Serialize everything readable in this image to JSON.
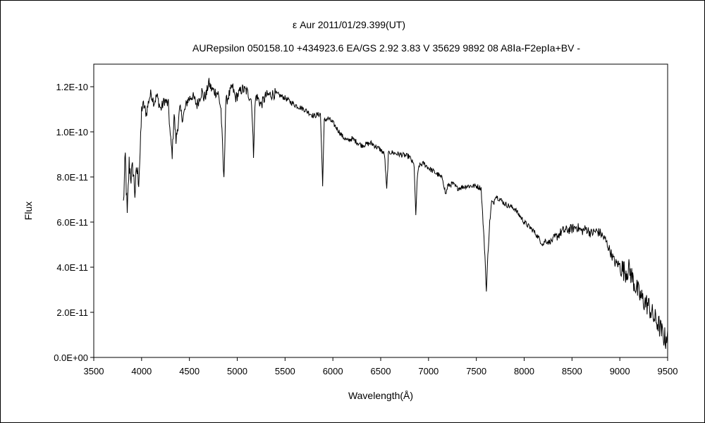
{
  "chart_data": {
    "type": "line",
    "title": "ε Aur   2011/01/29.399(UT)",
    "subtitle": "AURepsilon 050158.10 +434923.6 EA/GS 2.92 3.83 V 35629 9892 08 A8Ⅰa-F2epⅠa+BV -",
    "xlabel": "Wavelength(Å)",
    "ylabel": "Flux",
    "xlim": [
      3500,
      9500
    ],
    "ylim": [
      0,
      1.2e-10
    ],
    "ymax_plot": 1.3e-10,
    "x_ticks": [
      "3500",
      "4000",
      "4500",
      "5000",
      "5500",
      "6000",
      "6500",
      "7000",
      "7500",
      "8000",
      "8500",
      "9000",
      "9500"
    ],
    "x_tick_values": [
      3500,
      4000,
      4500,
      5000,
      5500,
      6000,
      6500,
      7000,
      7500,
      8000,
      8500,
      9000,
      9500
    ],
    "y_ticks": [
      "0.0E+00",
      "2.0E-11",
      "4.0E-11",
      "6.0E-11",
      "8.0E-11",
      "1.0E-10",
      "1.2E-10"
    ],
    "y_tick_values": [
      0,
      2e-11,
      4e-11,
      6e-11,
      8e-11,
      1e-10,
      1.2e-10
    ],
    "grid": false,
    "legend": "none",
    "line_color": "#000000",
    "series": [
      {
        "values_unit": "Flux",
        "x": [
          3810,
          3830,
          3850,
          3870,
          3890,
          3910,
          3930,
          3950,
          3970,
          3990,
          4000,
          4020,
          4050,
          4080,
          4100,
          4130,
          4160,
          4200,
          4240,
          4280,
          4300,
          4320,
          4340,
          4360,
          4400,
          4430,
          4480,
          4530,
          4580,
          4630,
          4650,
          4680,
          4700,
          4730,
          4760,
          4800,
          4830,
          4861,
          4880,
          4900,
          4950,
          4980,
          5000,
          5050,
          5100,
          5150,
          5170,
          5180,
          5190,
          5200,
          5250,
          5300,
          5400,
          5500,
          5600,
          5700,
          5800,
          5870,
          5893,
          5910,
          5950,
          6000,
          6100,
          6150,
          6200,
          6300,
          6400,
          6500,
          6540,
          6563,
          6580,
          6600,
          6700,
          6800,
          6850,
          6867,
          6880,
          6900,
          6950,
          7000,
          7100,
          7150,
          7180,
          7200,
          7250,
          7300,
          7400,
          7500,
          7550,
          7590,
          7605,
          7620,
          7640,
          7660,
          7680,
          7700,
          7720,
          7750,
          7800,
          7900,
          8000,
          8100,
          8150,
          8180,
          8200,
          8220,
          8250,
          8300,
          8400,
          8500,
          8550,
          8600,
          8650,
          8700,
          8750,
          8800,
          8850,
          8900,
          8950,
          9000,
          9050,
          9100,
          9150,
          9200,
          9250,
          9300,
          9350,
          9400,
          9450,
          9480,
          9500
        ],
        "values": [
          6.8e-11,
          8.9e-11,
          6.2e-11,
          8.6e-11,
          8e-11,
          8.4e-11,
          7.3e-11,
          8.3e-11,
          7.9e-11,
          9.5e-11,
          1.1e-10,
          1.12e-10,
          1.08e-10,
          1.15e-10,
          1.17e-10,
          1.13e-10,
          1.16e-10,
          1.1e-10,
          1.14e-10,
          1.12e-10,
          9.8e-11,
          9e-11,
          1.08e-10,
          9.6e-11,
          1.1e-10,
          1.06e-10,
          1.14e-10,
          1.16e-10,
          1.12e-10,
          1.18e-10,
          1.15e-10,
          1.17e-10,
          1.22e-10,
          1.19e-10,
          1.18e-10,
          1.17e-10,
          1.1e-10,
          7.8e-11,
          1.13e-10,
          1.15e-10,
          1.2e-10,
          1.15e-10,
          1.16e-10,
          1.19e-10,
          1.18e-10,
          1.14e-10,
          9e-11,
          1.05e-10,
          1.14e-10,
          1.16e-10,
          1.12e-10,
          1.16e-10,
          1.17e-10,
          1.15e-10,
          1.12e-10,
          1.1e-10,
          1.07e-10,
          1.08e-10,
          7.7e-11,
          1.05e-10,
          1.06e-10,
          1.04e-10,
          9.8e-11,
          9.6e-11,
          9.7e-11,
          9.4e-11,
          9.5e-11,
          9.2e-11,
          9e-11,
          7.4e-11,
          9e-11,
          9.1e-11,
          9e-11,
          8.9e-11,
          8.5e-11,
          6.2e-11,
          7.8e-11,
          8.5e-11,
          8.6e-11,
          8.4e-11,
          8.1e-11,
          7.9e-11,
          7.2e-11,
          7.6e-11,
          7.7e-11,
          7.5e-11,
          7.6e-11,
          7.6e-11,
          7.5e-11,
          4.5e-11,
          2.9e-11,
          4.5e-11,
          6e-11,
          6.9e-11,
          6.8e-11,
          7.2e-11,
          7.1e-11,
          7e-11,
          6.8e-11,
          6.6e-11,
          6e-11,
          5.6e-11,
          5.3e-11,
          5.1e-11,
          5e-11,
          5.2e-11,
          5.1e-11,
          5.2e-11,
          5.6e-11,
          5.7e-11,
          5.8e-11,
          5.6e-11,
          5.7e-11,
          5.5e-11,
          5.6e-11,
          5.5e-11,
          5.2e-11,
          4.7e-11,
          4.2e-11,
          4.1e-11,
          3.8e-11,
          3.9e-11,
          3.3e-11,
          2.8e-11,
          2.5e-11,
          2.3e-11,
          1.8e-11,
          1.5e-11,
          1e-11,
          8e-12,
          1.2e-11
        ]
      }
    ]
  }
}
